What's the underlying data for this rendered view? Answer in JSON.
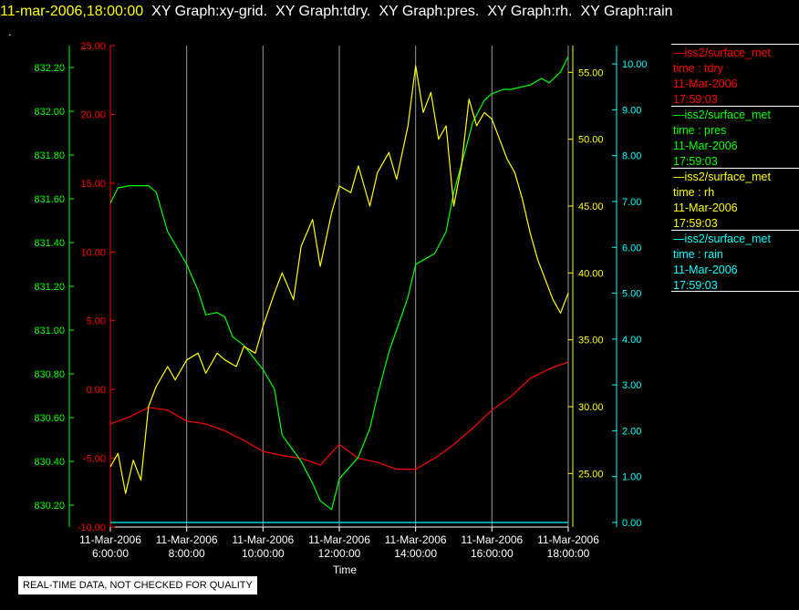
{
  "header": {
    "time": "11-mar-2006,18:00:00",
    "titles": [
      "XY Graph:xy-grid.",
      "XY Graph:tdry.",
      "XY Graph:pres.",
      "XY Graph:rh.",
      "XY Graph:rain"
    ],
    "dot": "."
  },
  "legend": [
    {
      "name": "—iss2/surface_met",
      "var": "time : tdry",
      "date": "11-Mar-2006",
      "time": "17:59:03",
      "color": "#ff0000"
    },
    {
      "name": "—iss2/surface_met",
      "var": "time : pres",
      "date": "11-Mar-2006",
      "time": "17:59:03",
      "color": "#00ff00"
    },
    {
      "name": "—iss2/surface_met",
      "var": "time : rh",
      "date": "11-Mar-2006",
      "time": "17:59:03",
      "color": "#ffff00"
    },
    {
      "name": "—iss2/surface_met",
      "var": "time : rain",
      "date": "11-Mar-2006",
      "time": "17:59:03",
      "color": "#00ffff"
    }
  ],
  "footer_note": "REAL-TIME DATA, NOT CHECKED FOR QUALITY",
  "chart_data": {
    "type": "line",
    "title": "",
    "xlabel": "Time",
    "x_ticks": [
      {
        "t": 6,
        "date": "11-Mar-2006",
        "time": "6:00:00"
      },
      {
        "t": 8,
        "date": "11-Mar-2006",
        "time": "8:00:00"
      },
      {
        "t": 10,
        "date": "11-Mar-2006",
        "time": "10:00:00"
      },
      {
        "t": 12,
        "date": "11-Mar-2006",
        "time": "12:00:00"
      },
      {
        "t": 14,
        "date": "11-Mar-2006",
        "time": "14:00:00"
      },
      {
        "t": 16,
        "date": "11-Mar-2006",
        "time": "16:00:00"
      },
      {
        "t": 18,
        "date": "11-Mar-2006",
        "time": "18:00:00"
      }
    ],
    "xlim": [
      6,
      18
    ],
    "grid": "vertical",
    "legend_position": "right",
    "axes": [
      {
        "id": "tdry",
        "side": "left-inner",
        "color": "#ff0000",
        "ylim": [
          -10,
          25
        ],
        "ticks": [
          "-10.00",
          "-5.00",
          "0.00",
          "5.00",
          "10.00",
          "15.00",
          "20.00",
          "25.00"
        ]
      },
      {
        "id": "pres",
        "side": "left-outer",
        "color": "#00ff00",
        "ylim": [
          830.1,
          832.3
        ],
        "ticks": [
          "830.20",
          "830.40",
          "830.60",
          "830.80",
          "831.00",
          "831.20",
          "831.40",
          "831.60",
          "831.80",
          "832.00",
          "832.20"
        ]
      },
      {
        "id": "rh",
        "side": "right-inner",
        "color": "#ffff00",
        "ylim": [
          21,
          57
        ],
        "ticks": [
          "25.00",
          "30.00",
          "35.00",
          "40.00",
          "45.00",
          "50.00",
          "55.00"
        ]
      },
      {
        "id": "rain",
        "side": "right-outer",
        "color": "#00ffff",
        "ylim": [
          -0.1,
          10.4
        ],
        "ticks": [
          "0.00",
          "1.00",
          "2.00",
          "3.00",
          "4.00",
          "5.00",
          "6.00",
          "7.00",
          "8.00",
          "9.00",
          "10.00"
        ]
      }
    ],
    "series": [
      {
        "axis": "tdry",
        "color": "#ff0000",
        "t": [
          6.0,
          6.5,
          7.0,
          7.5,
          8.0,
          8.5,
          9.0,
          9.5,
          10.0,
          10.5,
          11.0,
          11.5,
          12.0,
          12.5,
          13.0,
          13.5,
          14.0,
          14.5,
          15.0,
          15.5,
          16.0,
          16.5,
          17.0,
          17.5,
          18.0
        ],
        "values": [
          -2.5,
          -2.0,
          -1.3,
          -1.5,
          -2.3,
          -2.5,
          -3.0,
          -3.7,
          -4.5,
          -4.8,
          -5.0,
          -5.5,
          -4.0,
          -5.0,
          -5.3,
          -5.8,
          -5.8,
          -5.0,
          -4.0,
          -2.8,
          -1.5,
          -0.5,
          0.8,
          1.5,
          2.0
        ]
      },
      {
        "axis": "pres",
        "color": "#00ff00",
        "t": [
          6.0,
          6.2,
          6.5,
          6.8,
          7.0,
          7.2,
          7.5,
          8.0,
          8.3,
          8.5,
          8.8,
          9.0,
          9.2,
          9.5,
          10.0,
          10.3,
          10.5,
          11.0,
          11.3,
          11.5,
          11.8,
          12.0,
          12.3,
          12.5,
          12.8,
          13.0,
          13.3,
          13.5,
          13.8,
          14.0,
          14.2,
          14.5,
          14.8,
          15.0,
          15.3,
          15.5,
          15.8,
          16.0,
          16.3,
          16.5,
          17.0,
          17.3,
          17.5,
          17.8,
          18.0
        ],
        "values": [
          831.58,
          831.65,
          831.66,
          831.66,
          831.66,
          831.63,
          831.45,
          831.3,
          831.18,
          831.07,
          831.08,
          831.06,
          830.97,
          830.93,
          830.82,
          830.73,
          830.52,
          830.4,
          830.3,
          830.22,
          830.18,
          830.32,
          830.38,
          830.42,
          830.55,
          830.7,
          830.9,
          831.0,
          831.15,
          831.3,
          831.32,
          831.35,
          831.45,
          831.63,
          831.82,
          831.95,
          832.05,
          832.08,
          832.1,
          832.1,
          832.12,
          832.15,
          832.13,
          832.18,
          832.25
        ]
      },
      {
        "axis": "rh",
        "color": "#ffff00",
        "t": [
          6.0,
          6.2,
          6.4,
          6.6,
          6.8,
          7.0,
          7.2,
          7.5,
          7.7,
          8.0,
          8.3,
          8.5,
          8.8,
          9.0,
          9.3,
          9.5,
          9.8,
          10.0,
          10.3,
          10.5,
          10.8,
          11.0,
          11.3,
          11.5,
          11.8,
          12.0,
          12.3,
          12.5,
          12.8,
          13.0,
          13.3,
          13.5,
          13.8,
          14.0,
          14.2,
          14.4,
          14.6,
          14.8,
          15.0,
          15.2,
          15.4,
          15.6,
          15.8,
          16.0,
          16.2,
          16.4,
          16.6,
          16.8,
          17.0,
          17.2,
          17.4,
          17.6,
          17.8,
          18.0
        ],
        "values": [
          25.5,
          26.5,
          23.5,
          26.0,
          24.5,
          30.0,
          31.5,
          33.0,
          32.0,
          33.5,
          34.0,
          32.5,
          34.0,
          33.5,
          33.0,
          34.5,
          34.0,
          36.0,
          38.5,
          40.0,
          38.0,
          42.0,
          44.0,
          40.5,
          44.5,
          46.5,
          46.0,
          48.0,
          45.0,
          47.5,
          49.0,
          47.0,
          51.0,
          55.5,
          52.0,
          53.5,
          50.0,
          51.0,
          45.0,
          48.0,
          53.0,
          51.0,
          52.0,
          51.5,
          50.0,
          48.5,
          47.5,
          45.5,
          43.0,
          41.0,
          39.5,
          38.0,
          37.0,
          38.5
        ]
      },
      {
        "axis": "rain",
        "color": "#00ffff",
        "t": [
          6.0,
          18.0
        ],
        "values": [
          0.0,
          0.0
        ]
      }
    ]
  }
}
